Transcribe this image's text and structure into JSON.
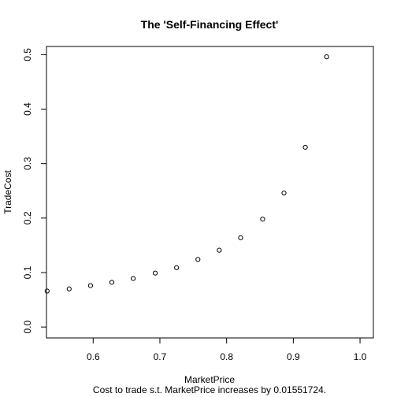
{
  "chart_data": {
    "type": "scatter",
    "title": "The 'Self-Financing Effect'",
    "xlabel": "MarketPrice",
    "ylabel": "TradeCost",
    "subtitle": "Cost to trade s.t. MarketPrice increases by 0.01551724.",
    "xlim": [
      0.53,
      1.02
    ],
    "ylim": [
      -0.02,
      0.515
    ],
    "xticks": [
      0.6,
      0.7,
      0.8,
      0.9,
      1.0
    ],
    "xtick_labels": [
      "0.6",
      "0.7",
      "0.8",
      "0.9",
      "1.0"
    ],
    "yticks": [
      0.0,
      0.1,
      0.2,
      0.3,
      0.4,
      0.5
    ],
    "ytick_labels": [
      "0.0",
      "0.1",
      "0.2",
      "0.3",
      "0.4",
      "0.5"
    ],
    "grid": false,
    "points": [
      {
        "x": 0.531,
        "y": 0.066
      },
      {
        "x": 0.564,
        "y": 0.07
      },
      {
        "x": 0.596,
        "y": 0.076
      },
      {
        "x": 0.628,
        "y": 0.082
      },
      {
        "x": 0.66,
        "y": 0.089
      },
      {
        "x": 0.693,
        "y": 0.099
      },
      {
        "x": 0.725,
        "y": 0.109
      },
      {
        "x": 0.757,
        "y": 0.124
      },
      {
        "x": 0.789,
        "y": 0.141
      },
      {
        "x": 0.821,
        "y": 0.164
      },
      {
        "x": 0.854,
        "y": 0.198
      },
      {
        "x": 0.886,
        "y": 0.246
      },
      {
        "x": 0.918,
        "y": 0.33
      },
      {
        "x": 0.95,
        "y": 0.496
      }
    ]
  }
}
